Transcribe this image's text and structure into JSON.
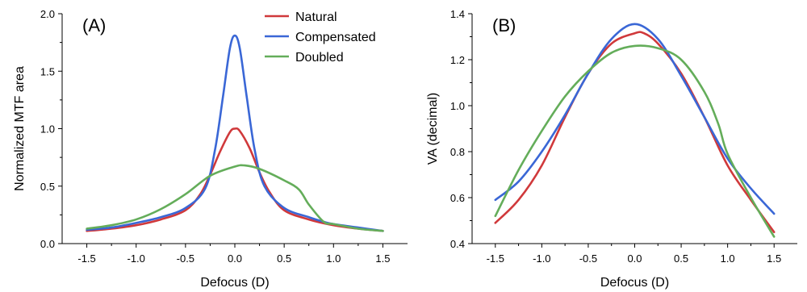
{
  "colors": {
    "natural": "#d0393b",
    "compensated": "#3a67d6",
    "doubled": "#64ad5a"
  },
  "chart_data": [
    {
      "type": "line",
      "panel_label": "(A)",
      "xlabel": "Defocus (D)",
      "ylabel": "Normalized MTF area",
      "xlim": [
        -1.75,
        1.75
      ],
      "ylim": [
        0,
        2.0
      ],
      "xticks": [
        -1.5,
        -1.0,
        -0.5,
        0.0,
        0.5,
        1.0,
        1.5
      ],
      "xtick_labels": [
        "-1.5",
        "-1.0",
        "-0.5",
        "0.0",
        "0.5",
        "1.0",
        "1.5"
      ],
      "yticks": [
        0.0,
        0.5,
        1.0,
        1.5,
        2.0
      ],
      "ytick_labels": [
        "0.0",
        "0.5",
        "1.0",
        "1.5",
        "2.0"
      ],
      "legend": {
        "position": "top-right",
        "entries": [
          "Natural",
          "Compensated",
          "Doubled"
        ]
      },
      "series": [
        {
          "name": "Natural",
          "color_key": "natural",
          "x": [
            -1.5,
            -1.25,
            -1.0,
            -0.75,
            -0.5,
            -0.35,
            -0.25,
            -0.15,
            -0.05,
            0.0,
            0.05,
            0.15,
            0.25,
            0.35,
            0.5,
            0.75,
            1.0,
            1.25,
            1.5
          ],
          "y": [
            0.11,
            0.13,
            0.16,
            0.21,
            0.29,
            0.43,
            0.6,
            0.8,
            0.97,
            1.0,
            0.98,
            0.83,
            0.62,
            0.45,
            0.29,
            0.21,
            0.16,
            0.13,
            0.11
          ]
        },
        {
          "name": "Compensated",
          "color_key": "compensated",
          "x": [
            -1.5,
            -1.25,
            -1.0,
            -0.75,
            -0.5,
            -0.3,
            -0.2,
            -0.12,
            -0.05,
            0.0,
            0.05,
            0.12,
            0.2,
            0.3,
            0.5,
            0.75,
            0.9,
            1.0,
            1.25,
            1.5
          ],
          "y": [
            0.12,
            0.14,
            0.18,
            0.23,
            0.31,
            0.48,
            0.82,
            1.28,
            1.7,
            1.81,
            1.7,
            1.28,
            0.82,
            0.5,
            0.31,
            0.23,
            0.19,
            0.17,
            0.14,
            0.11
          ]
        },
        {
          "name": "Doubled",
          "color_key": "doubled",
          "x": [
            -1.5,
            -1.25,
            -1.0,
            -0.75,
            -0.5,
            -0.25,
            0.0,
            0.1,
            0.25,
            0.5,
            0.65,
            0.75,
            0.9,
            1.0,
            1.25,
            1.5
          ],
          "y": [
            0.13,
            0.16,
            0.21,
            0.3,
            0.43,
            0.59,
            0.67,
            0.68,
            0.65,
            0.55,
            0.47,
            0.34,
            0.19,
            0.17,
            0.13,
            0.11
          ]
        }
      ]
    },
    {
      "type": "line",
      "panel_label": "(B)",
      "xlabel": "Defocus (D)",
      "ylabel": "VA (decimal)",
      "xlim": [
        -1.75,
        1.75
      ],
      "ylim": [
        0.4,
        1.4
      ],
      "xticks": [
        -1.5,
        -1.0,
        -0.5,
        0.0,
        0.5,
        1.0,
        1.5
      ],
      "xtick_labels": [
        "-1.5",
        "-1.0",
        "-0.5",
        "0.0",
        "0.5",
        "1.0",
        "1.5"
      ],
      "yticks": [
        0.4,
        0.6,
        0.8,
        1.0,
        1.2,
        1.4
      ],
      "ytick_labels": [
        "0.4",
        "0.6",
        "0.8",
        "1.0",
        "1.2",
        "1.4"
      ],
      "series": [
        {
          "name": "Natural",
          "color_key": "natural",
          "x": [
            -1.5,
            -1.25,
            -1.0,
            -0.75,
            -0.5,
            -0.25,
            0.0,
            0.1,
            0.25,
            0.5,
            0.75,
            1.0,
            1.25,
            1.5
          ],
          "y": [
            0.49,
            0.59,
            0.74,
            0.95,
            1.14,
            1.27,
            1.315,
            1.315,
            1.27,
            1.14,
            0.95,
            0.74,
            0.59,
            0.45
          ]
        },
        {
          "name": "Compensated",
          "color_key": "compensated",
          "x": [
            -1.5,
            -1.25,
            -1.0,
            -0.75,
            -0.5,
            -0.25,
            0.0,
            0.25,
            0.5,
            0.75,
            1.0,
            1.25,
            1.5
          ],
          "y": [
            0.59,
            0.67,
            0.8,
            0.96,
            1.14,
            1.29,
            1.355,
            1.29,
            1.13,
            0.95,
            0.77,
            0.64,
            0.53
          ]
        },
        {
          "name": "Doubled",
          "color_key": "doubled",
          "x": [
            -1.5,
            -1.25,
            -1.0,
            -0.75,
            -0.5,
            -0.25,
            0.0,
            0.25,
            0.5,
            0.75,
            0.9,
            1.0,
            1.25,
            1.5
          ],
          "y": [
            0.52,
            0.72,
            0.89,
            1.04,
            1.15,
            1.23,
            1.26,
            1.25,
            1.2,
            1.06,
            0.92,
            0.79,
            0.6,
            0.43
          ]
        }
      ]
    }
  ]
}
